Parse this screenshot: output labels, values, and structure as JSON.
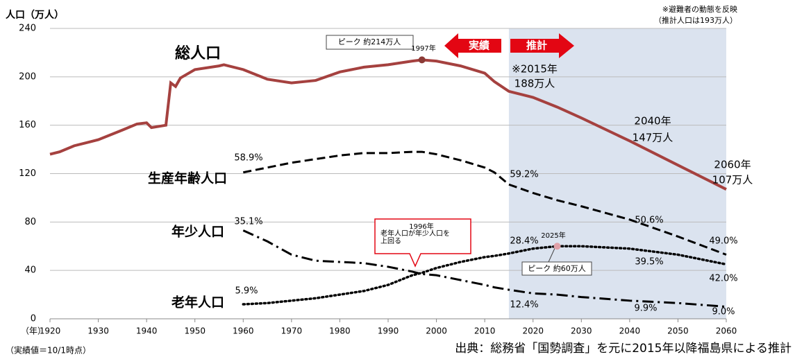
{
  "chart_data": {
    "type": "line",
    "y_label": "人口（万人）",
    "x_label": "（年）",
    "notes": [
      "※避難者の動態を反映",
      "（推計人口は193万人）"
    ],
    "footnote": "（実績値＝10/1時点）",
    "source": "出典：総務省「国勢調査」を元に2015年以降福島県による推計",
    "x": [
      1920,
      1922,
      1925,
      1930,
      1935,
      1938,
      1940,
      1941,
      1944,
      1945,
      1946,
      1947,
      1950,
      1955,
      1956,
      1960,
      1965,
      1970,
      1975,
      1980,
      1985,
      1990,
      1995,
      1997,
      2000,
      2005,
      2010,
      2012,
      2015,
      2020,
      2025,
      2030,
      2040,
      2050,
      2060
    ],
    "xlim": [
      1920,
      2060
    ],
    "xticks": [
      1920,
      1930,
      1940,
      1950,
      1960,
      1970,
      1980,
      1990,
      2000,
      2010,
      2020,
      2030,
      2040,
      2050,
      2060
    ],
    "ylim": [
      0,
      240
    ],
    "yticks": [
      0,
      40,
      80,
      120,
      160,
      200,
      240
    ],
    "grid": true,
    "shade_xrange": [
      2015,
      2060
    ],
    "shade_color": "#dbe3ef",
    "series": [
      {
        "name": "総人口",
        "color": "#a5413f",
        "style": "solid",
        "values": [
          136,
          138,
          143,
          148,
          156,
          161,
          162,
          158,
          160,
          195,
          192,
          199,
          206,
          209,
          210,
          206,
          198,
          195,
          197,
          204,
          208,
          210,
          213,
          214,
          213,
          209,
          203,
          196,
          188,
          183,
          175,
          166,
          147,
          127,
          107
        ]
      },
      {
        "name": "生産年齢人口",
        "color": "#000000",
        "style": "dashed",
        "values": [
          null,
          null,
          null,
          null,
          null,
          null,
          null,
          null,
          null,
          null,
          null,
          null,
          null,
          null,
          null,
          121,
          125,
          129,
          132,
          135,
          137,
          137,
          138,
          138,
          136,
          131,
          125,
          121,
          111,
          104,
          98,
          93,
          82,
          68,
          53
        ]
      },
      {
        "name": "年少人口",
        "color": "#000000",
        "style": "dashdot",
        "values": [
          null,
          null,
          null,
          null,
          null,
          null,
          null,
          null,
          null,
          null,
          null,
          null,
          null,
          null,
          null,
          73,
          64,
          53,
          48,
          47,
          46,
          43,
          39,
          37,
          36,
          32,
          28,
          26,
          24,
          21,
          20,
          18,
          15,
          13,
          10
        ]
      },
      {
        "name": "老年人口",
        "color": "#000000",
        "style": "dotted",
        "values": [
          null,
          null,
          null,
          null,
          null,
          null,
          null,
          null,
          null,
          null,
          null,
          null,
          null,
          null,
          null,
          12,
          13,
          15,
          17,
          20,
          23,
          28,
          36,
          38,
          42,
          47,
          51,
          52,
          54,
          58,
          60,
          60,
          58,
          53,
          45
        ]
      }
    ],
    "annotations": [
      "ピーク 約214万人",
      "1997年",
      "実績",
      "推計",
      "※2015年",
      "188万人",
      "2040年",
      "147万人",
      "2060年",
      "107万人",
      "58.9%",
      "59.2%",
      "50.6%",
      "49.0%",
      "35.1%",
      "39.5%",
      "42.0%",
      "28.4%",
      "5.9%",
      "12.4%",
      "9.9%",
      "9.0%",
      "1996年",
      "老年人口が年少人口を",
      "上回る",
      "2025年",
      "ピーク 約60万人"
    ]
  }
}
